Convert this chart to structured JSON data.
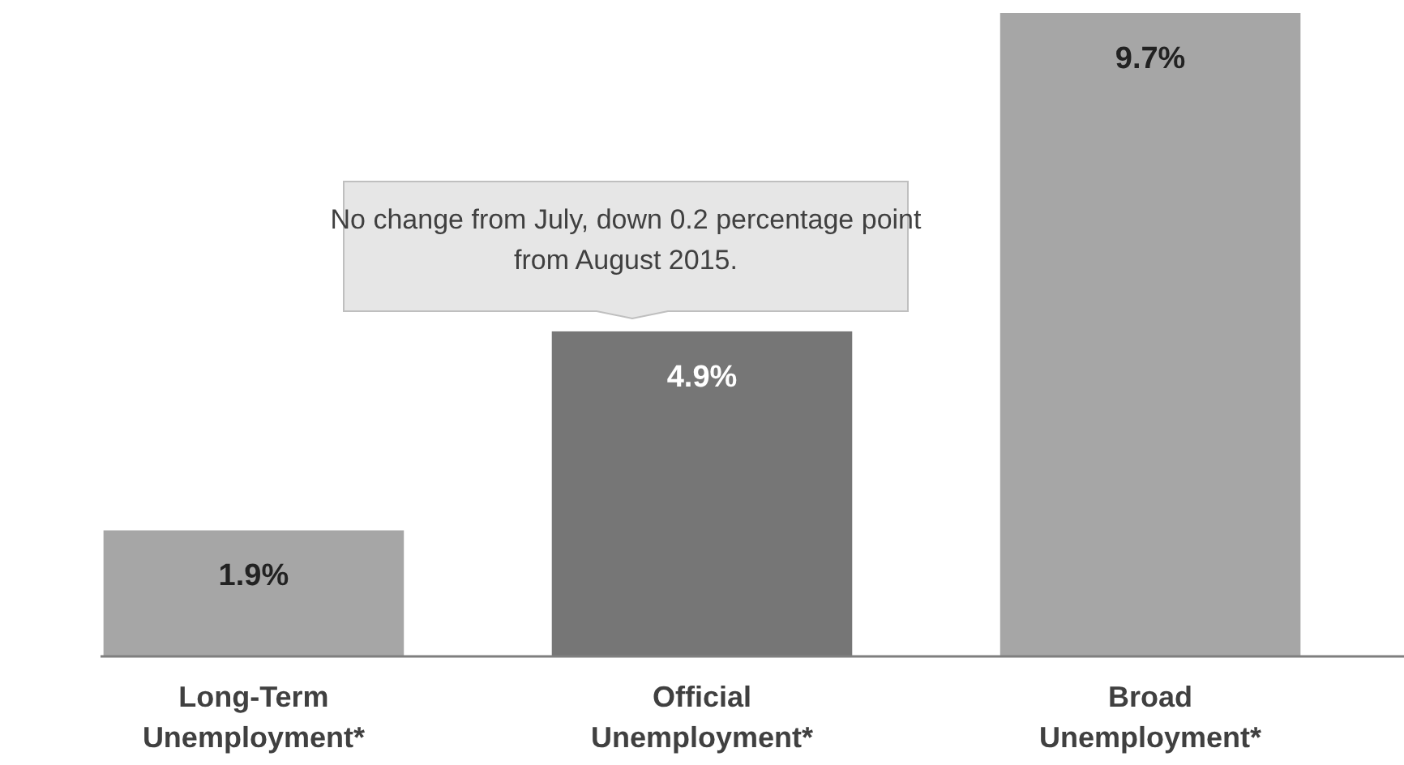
{
  "chart_data": {
    "type": "bar",
    "categories": [
      "Long-Term Unemployment*",
      "Official Unemployment*",
      "Broad Unemployment*"
    ],
    "values": [
      1.9,
      4.9,
      9.7
    ],
    "colors": [
      "#a6a6a6",
      "#767676",
      "#a6a6a6"
    ],
    "value_labels": [
      "1.9%",
      "4.9%",
      "9.7%"
    ],
    "tick_labels": "x",
    "annotations": [
      {
        "text": "No change from July, down 0.2 percentage point from August 2015.",
        "x": "Official Unemployment*",
        "y": 4.9
      }
    ]
  }
}
